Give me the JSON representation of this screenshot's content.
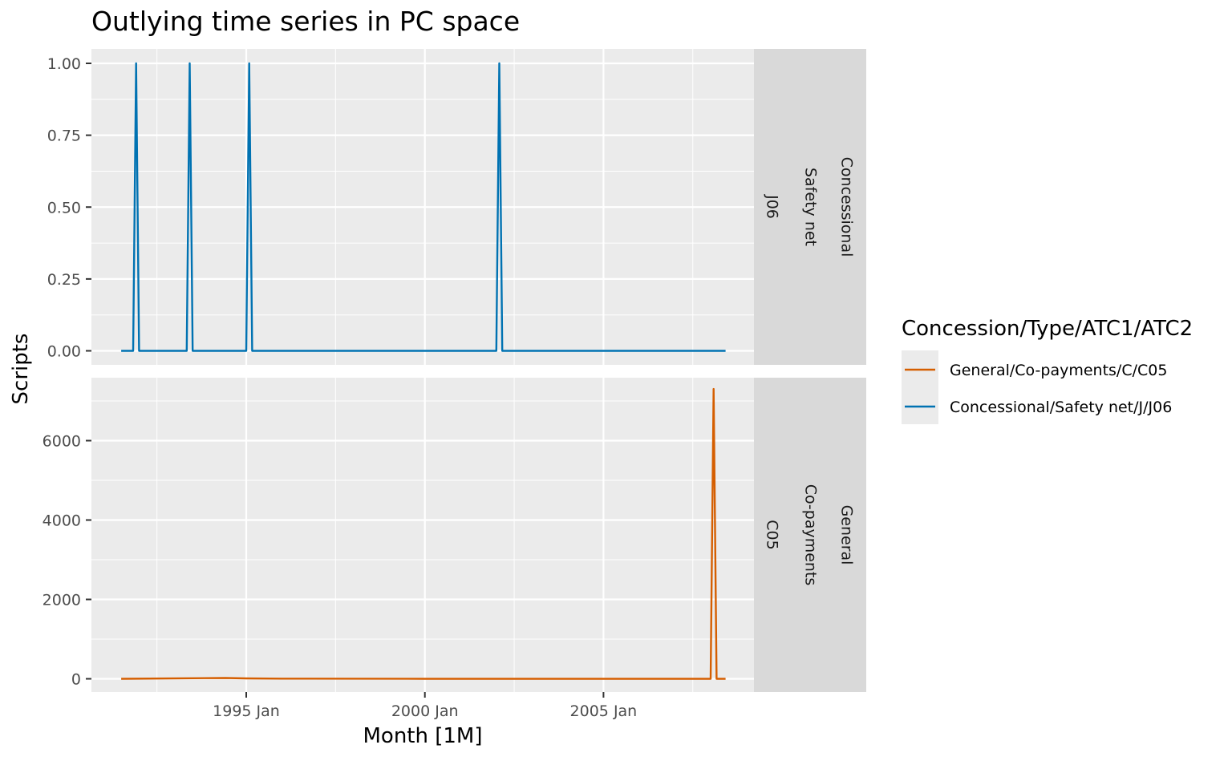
{
  "chart_data": {
    "type": "line",
    "title": "Outlying time series in PC space",
    "xlabel": "Month [1M]",
    "ylabel": "Scripts",
    "x_ticks": [
      "1995 Jan",
      "2000 Jan",
      "2005 Jan"
    ],
    "legend": {
      "title": "Concession/Type/ATC1/ATC2",
      "placement": "right",
      "entries": [
        {
          "label": "General/Co-payments/C/C05",
          "color": "#D55E00"
        },
        {
          "label": "Concessional/Safety net/J/J06",
          "color": "#0072B2"
        }
      ]
    },
    "grid": true,
    "panels": [
      {
        "strip": [
          "Concessional",
          "Safety net",
          "J06"
        ],
        "series_label": "Concessional/Safety net/J/J06",
        "color": "#0072B2",
        "ylim": [
          0,
          1
        ],
        "y_ticks": [
          "0.00",
          "0.25",
          "0.50",
          "0.75",
          "1.00"
        ],
        "points": [
          [
            "1991-07",
            0
          ],
          [
            "1991-08",
            0
          ],
          [
            "1991-09",
            0
          ],
          [
            "1991-10",
            0
          ],
          [
            "1991-11",
            0
          ],
          [
            "1991-12",
            1
          ],
          [
            "1992-01",
            0
          ],
          [
            "1993-04",
            0
          ],
          [
            "1993-05",
            0
          ],
          [
            "1993-06",
            1
          ],
          [
            "1993-07",
            0
          ],
          [
            "1995-01",
            0
          ],
          [
            "1995-02",
            1
          ],
          [
            "1995-03",
            0
          ],
          [
            "2002-01",
            0
          ],
          [
            "2002-02",
            1
          ],
          [
            "2002-03",
            0
          ],
          [
            "2008-06",
            0
          ]
        ]
      },
      {
        "strip": [
          "General",
          "Co-payments",
          "C05"
        ],
        "series_label": "General/Co-payments/C/C05",
        "color": "#D55E00",
        "ylim": [
          0,
          7300
        ],
        "y_ticks": [
          "0",
          "2000",
          "4000",
          "6000"
        ],
        "points": [
          [
            "1991-07",
            0
          ],
          [
            "1994-06",
            20
          ],
          [
            "1995-01",
            10
          ],
          [
            "1996-01",
            5
          ],
          [
            "2000-01",
            0
          ],
          [
            "2005-01",
            0
          ],
          [
            "2008-01",
            0
          ],
          [
            "2008-02",
            7300
          ],
          [
            "2008-03",
            0
          ],
          [
            "2008-06",
            0
          ]
        ]
      }
    ]
  }
}
